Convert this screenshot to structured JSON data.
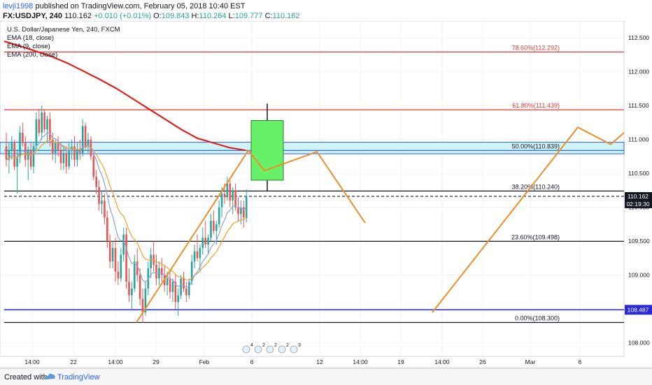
{
  "header": {
    "user": "levji1998",
    "published_text": "published on TradingView.com, February 05, 2018 10:40 EST",
    "symbol": "FX:USDJPY, 240",
    "last": "110.162",
    "change": "+0.010 (+0.01%)",
    "o_label": "O:",
    "o_value": "109.843",
    "h_label": "H:",
    "h_value": "110.264",
    "l_label": "L:",
    "l_value": "109.777",
    "c_label": "C:",
    "c_value": "110.162"
  },
  "legend": {
    "title": "U.S. Dollar/Japanese Yen, 240, FXCM",
    "ema18": "EMA (18, close)",
    "ema9": "EMA (9, close)",
    "ema200": "EMA (200, close)"
  },
  "footer": {
    "created": "Created with",
    "brand": "TradingView"
  },
  "colors": {
    "up_candle": "#26a69a",
    "down_candle": "#ef5350",
    "ema18": "#f0a030",
    "ema9": "#8ea3d6",
    "ema200": "#e02020",
    "fib_red": "#e53935",
    "fib_black": "#131722",
    "support_blue": "#2a2ad4",
    "zone_fill": "#b2ebf2",
    "projection": "#e8912c",
    "box_green": "#69f069"
  },
  "chart_data": {
    "type": "candlestick",
    "symbol": "USDJPY",
    "timeframe": "240",
    "ylim": [
      107.8,
      112.75
    ],
    "y_ticks": [
      "108.000",
      "108.500",
      "109.000",
      "109.500",
      "110.000",
      "110.500",
      "111.000",
      "111.500",
      "112.000",
      "112.500"
    ],
    "x_ticks": [
      "14:00",
      "22",
      "14:00",
      "29",
      "Feb",
      "6",
      "12",
      "14:00",
      "19",
      "14:00",
      "26",
      "Mar",
      "6"
    ],
    "fib_levels": [
      {
        "label": "78.60%(112.292)",
        "value": 112.292,
        "color": "red"
      },
      {
        "label": "61.80%(111.439)",
        "value": 111.439,
        "color": "red"
      },
      {
        "label": "50.00%(110.839)",
        "value": 110.839,
        "color": "blue"
      },
      {
        "label": "38.20%(110.240)",
        "value": 110.24,
        "color": "black"
      },
      {
        "label": "23.60%(109.498)",
        "value": 109.498,
        "color": "black"
      },
      {
        "label": "0.00%(108.300)",
        "value": 108.3,
        "color": "black"
      }
    ],
    "horizontal_lines": [
      {
        "label": "108.487",
        "value": 108.487,
        "style": "solid blue"
      },
      {
        "label": "110.162",
        "value": 110.162,
        "style": "dashed black"
      }
    ],
    "price_badges": [
      {
        "label": "110.162",
        "value": 110.162
      },
      {
        "label": "02:19:30",
        "value": 110.08
      }
    ],
    "shaded_zone": [
      110.79,
      110.96
    ],
    "projection_box": {
      "open": 110.4,
      "close": 111.28,
      "high": 111.53,
      "low": 110.24
    },
    "projection_path": [
      110.84,
      110.54,
      110.82,
      109.77
    ],
    "projection_path_2": [
      108.45,
      111.18,
      110.93,
      111.1
    ],
    "event_markers": [
      "4",
      "2",
      "2",
      "2",
      "3"
    ],
    "candles": [
      [
        110.9,
        111.1,
        110.6,
        110.7
      ],
      [
        110.7,
        110.95,
        110.5,
        110.85
      ],
      [
        110.85,
        111.05,
        110.7,
        110.95
      ],
      [
        110.95,
        111.0,
        110.55,
        110.6
      ],
      [
        110.6,
        110.85,
        110.2,
        110.75
      ],
      [
        110.75,
        111.2,
        110.65,
        111.1
      ],
      [
        111.1,
        111.25,
        110.9,
        110.95
      ],
      [
        110.95,
        111.05,
        110.6,
        110.7
      ],
      [
        110.7,
        110.9,
        110.4,
        110.85
      ],
      [
        110.85,
        110.95,
        110.55,
        110.6
      ],
      [
        110.6,
        110.95,
        110.5,
        110.9
      ],
      [
        110.9,
        111.4,
        110.85,
        111.3
      ],
      [
        111.3,
        111.45,
        111.05,
        111.1
      ],
      [
        111.1,
        111.5,
        111.0,
        111.4
      ],
      [
        111.4,
        111.45,
        111.1,
        111.15
      ],
      [
        111.15,
        111.35,
        110.95,
        111.3
      ],
      [
        111.3,
        111.4,
        110.9,
        111.0
      ],
      [
        111.0,
        111.1,
        110.7,
        110.8
      ],
      [
        110.8,
        111.0,
        110.65,
        110.95
      ],
      [
        110.95,
        111.05,
        110.75,
        110.85
      ],
      [
        110.85,
        110.95,
        110.55,
        110.65
      ],
      [
        110.65,
        110.9,
        110.55,
        110.8
      ],
      [
        110.8,
        110.9,
        110.5,
        110.6
      ],
      [
        110.6,
        110.95,
        110.55,
        110.85
      ],
      [
        110.85,
        111.0,
        110.7,
        110.9
      ],
      [
        110.9,
        111.05,
        110.6,
        110.7
      ],
      [
        110.7,
        110.95,
        110.6,
        110.85
      ],
      [
        110.85,
        111.0,
        110.7,
        110.8
      ],
      [
        110.8,
        111.3,
        110.75,
        111.2
      ],
      [
        111.2,
        111.25,
        110.85,
        110.9
      ],
      [
        110.9,
        111.1,
        110.8,
        111.0
      ],
      [
        111.0,
        111.05,
        110.7,
        110.75
      ],
      [
        110.75,
        110.8,
        110.4,
        110.45
      ],
      [
        110.45,
        110.55,
        110.2,
        110.3
      ],
      [
        110.3,
        110.4,
        109.95,
        110.05
      ],
      [
        110.05,
        110.25,
        109.9,
        110.1
      ],
      [
        110.1,
        110.2,
        109.75,
        109.85
      ],
      [
        109.85,
        109.95,
        109.4,
        109.5
      ],
      [
        109.5,
        109.6,
        109.1,
        109.2
      ],
      [
        109.2,
        109.5,
        109.1,
        109.4
      ],
      [
        109.4,
        109.55,
        108.9,
        109.05
      ],
      [
        109.05,
        109.2,
        108.85,
        108.95
      ],
      [
        108.95,
        109.4,
        108.9,
        109.3
      ],
      [
        109.3,
        109.7,
        109.2,
        109.6
      ],
      [
        109.6,
        109.7,
        108.8,
        108.9
      ],
      [
        108.9,
        109.1,
        108.6,
        108.7
      ],
      [
        108.7,
        108.9,
        108.5,
        108.8
      ],
      [
        108.8,
        109.3,
        108.75,
        109.2
      ],
      [
        109.2,
        109.4,
        108.9,
        109.0
      ],
      [
        109.0,
        109.1,
        108.55,
        108.65
      ],
      [
        108.65,
        108.8,
        108.3,
        108.45
      ],
      [
        108.45,
        108.9,
        108.4,
        108.8
      ],
      [
        108.8,
        109.2,
        108.7,
        109.1
      ],
      [
        109.1,
        109.4,
        108.95,
        109.3
      ],
      [
        109.3,
        109.5,
        109.05,
        109.15
      ],
      [
        109.15,
        109.3,
        108.85,
        108.95
      ],
      [
        108.95,
        109.2,
        108.85,
        109.1
      ],
      [
        109.1,
        109.25,
        108.9,
        109.0
      ],
      [
        109.0,
        109.15,
        108.75,
        108.85
      ],
      [
        108.85,
        109.05,
        108.7,
        108.95
      ],
      [
        108.95,
        109.05,
        108.65,
        108.75
      ],
      [
        108.75,
        108.95,
        108.6,
        108.9
      ],
      [
        108.9,
        109.0,
        108.5,
        108.6
      ],
      [
        108.6,
        108.8,
        108.4,
        108.7
      ],
      [
        108.7,
        109.0,
        108.65,
        108.95
      ],
      [
        108.95,
        109.05,
        108.75,
        108.8
      ],
      [
        108.8,
        108.9,
        108.6,
        108.7
      ],
      [
        108.7,
        108.95,
        108.65,
        108.9
      ],
      [
        108.9,
        109.3,
        108.85,
        109.2
      ],
      [
        109.2,
        109.45,
        109.1,
        109.35
      ],
      [
        109.35,
        109.6,
        109.2,
        109.25
      ],
      [
        109.25,
        109.45,
        109.05,
        109.4
      ],
      [
        109.4,
        109.7,
        109.3,
        109.55
      ],
      [
        109.55,
        109.8,
        109.4,
        109.45
      ],
      [
        109.45,
        109.6,
        109.3,
        109.55
      ],
      [
        109.55,
        109.9,
        109.5,
        109.8
      ],
      [
        109.8,
        109.95,
        109.6,
        109.65
      ],
      [
        109.65,
        109.8,
        109.45,
        109.75
      ],
      [
        109.75,
        110.1,
        109.7,
        110.0
      ],
      [
        110.0,
        110.3,
        109.85,
        110.2
      ],
      [
        110.2,
        110.35,
        110.05,
        110.15
      ],
      [
        110.15,
        110.45,
        110.1,
        110.35
      ],
      [
        110.35,
        110.4,
        110.0,
        110.1
      ],
      [
        110.1,
        110.3,
        109.9,
        110.25
      ],
      [
        110.25,
        110.35,
        109.95,
        110.0
      ],
      [
        110.0,
        110.15,
        109.8,
        109.9
      ],
      [
        109.9,
        110.1,
        109.75,
        110.0
      ],
      [
        110.0,
        110.1,
        109.7,
        109.85
      ],
      [
        109.843,
        110.264,
        109.777,
        110.162
      ]
    ]
  }
}
